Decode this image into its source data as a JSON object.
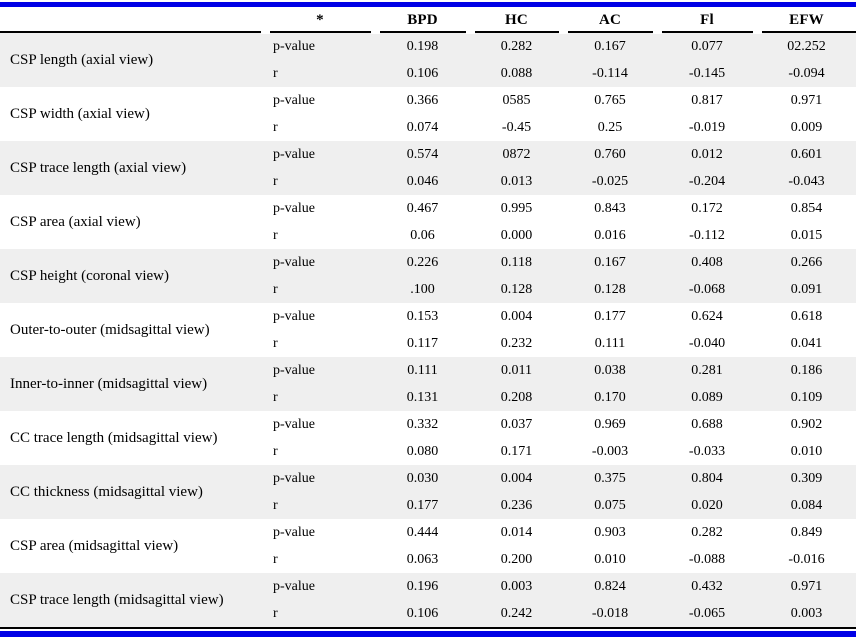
{
  "colors": {
    "accent_bar": "#0000e6",
    "row_stripe": "#efefef",
    "text": "#000000"
  },
  "table": {
    "header": {
      "label_col": "",
      "star": "*",
      "metrics": [
        "BPD",
        "HC",
        "AC",
        "Fl",
        "EFW"
      ]
    },
    "row_label_pvalue": "p-value",
    "row_label_r": "r",
    "rows": [
      {
        "label": "CSP length (axial view)",
        "p_value": [
          "0.198",
          "0.282",
          "0.167",
          "0.077",
          "02.252"
        ],
        "r": [
          "0.106",
          "0.088",
          "-0.114",
          "-0.145",
          "-0.094"
        ]
      },
      {
        "label": "CSP width (axial view)",
        "p_value": [
          "0.366",
          "0585",
          "0.765",
          "0.817",
          "0.971"
        ],
        "r": [
          "0.074",
          "-0.45",
          "0.25",
          "-0.019",
          "0.009"
        ]
      },
      {
        "label": "CSP trace length (axial view)",
        "p_value": [
          "0.574",
          "0872",
          "0.760",
          "0.012",
          "0.601"
        ],
        "r": [
          "0.046",
          "0.013",
          "-0.025",
          "-0.204",
          "-0.043"
        ]
      },
      {
        "label": "CSP area (axial view)",
        "p_value": [
          "0.467",
          "0.995",
          "0.843",
          "0.172",
          "0.854"
        ],
        "r": [
          "0.06",
          "0.000",
          "0.016",
          "-0.112",
          "0.015"
        ]
      },
      {
        "label": "CSP height (coronal view)",
        "p_value": [
          "0.226",
          "0.118",
          "0.167",
          "0.408",
          "0.266"
        ],
        "r": [
          ".100",
          "0.128",
          "0.128",
          "-0.068",
          "0.091"
        ]
      },
      {
        "label": "Outer-to-outer (midsagittal view)",
        "p_value": [
          "0.153",
          "0.004",
          "0.177",
          "0.624",
          "0.618"
        ],
        "r": [
          "0.117",
          "0.232",
          "0.111",
          "-0.040",
          "0.041"
        ]
      },
      {
        "label": "Inner-to-inner (midsagittal view)",
        "p_value": [
          "0.111",
          "0.011",
          "0.038",
          "0.281",
          "0.186"
        ],
        "r": [
          "0.131",
          "0.208",
          "0.170",
          "0.089",
          "0.109"
        ]
      },
      {
        "label": "CC trace length (midsagittal view)",
        "p_value": [
          "0.332",
          "0.037",
          "0.969",
          "0.688",
          "0.902"
        ],
        "r": [
          "0.080",
          "0.171",
          "-0.003",
          "-0.033",
          "0.010"
        ]
      },
      {
        "label": "CC thickness (midsagittal view)",
        "p_value": [
          "0.030",
          "0.004",
          "0.375",
          "0.804",
          "0.309"
        ],
        "r": [
          "0.177",
          "0.236",
          "0.075",
          "0.020",
          "0.084"
        ]
      },
      {
        "label": "CSP area (midsagittal view)",
        "p_value": [
          "0.444",
          "0.014",
          "0.903",
          "0.282",
          "0.849"
        ],
        "r": [
          "0.063",
          "0.200",
          "0.010",
          "-0.088",
          "-0.016"
        ]
      },
      {
        "label": "CSP trace length (midsagittal view)",
        "p_value": [
          "0.196",
          "0.003",
          "0.824",
          "0.432",
          "0.971"
        ],
        "r": [
          "0.106",
          "0.242",
          "-0.018",
          "-0.065",
          "0.003"
        ]
      }
    ]
  }
}
